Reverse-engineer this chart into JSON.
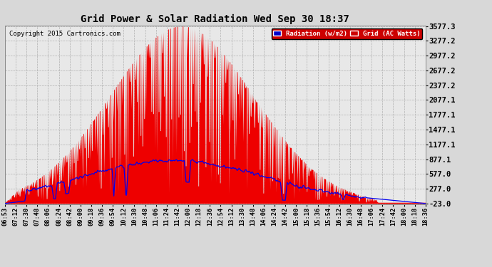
{
  "title": "Grid Power & Solar Radiation Wed Sep 30 18:37",
  "copyright": "Copyright 2015 Cartronics.com",
  "yticks": [
    3577.3,
    3277.2,
    2977.2,
    2677.2,
    2377.2,
    2077.1,
    1777.1,
    1477.1,
    1177.1,
    877.1,
    577.0,
    277.0,
    -23.0
  ],
  "ymin": -23.0,
  "ymax": 3577.3,
  "bg_color": "#d8d8d8",
  "plot_bg": "#e8e8e8",
  "grid_color": "#b0b0b0",
  "red_fill_color": "#ee0000",
  "blue_line_color": "#0000ee",
  "xtick_labels": [
    "06:53",
    "07:12",
    "07:30",
    "07:48",
    "08:06",
    "08:24",
    "08:42",
    "09:00",
    "09:18",
    "09:36",
    "09:54",
    "10:12",
    "10:30",
    "10:48",
    "11:06",
    "11:24",
    "11:42",
    "12:00",
    "12:18",
    "12:36",
    "12:54",
    "13:12",
    "13:30",
    "13:48",
    "14:06",
    "14:24",
    "14:42",
    "15:00",
    "15:18",
    "15:36",
    "15:54",
    "16:12",
    "16:30",
    "16:48",
    "17:06",
    "17:24",
    "17:42",
    "18:00",
    "18:18",
    "18:36"
  ]
}
